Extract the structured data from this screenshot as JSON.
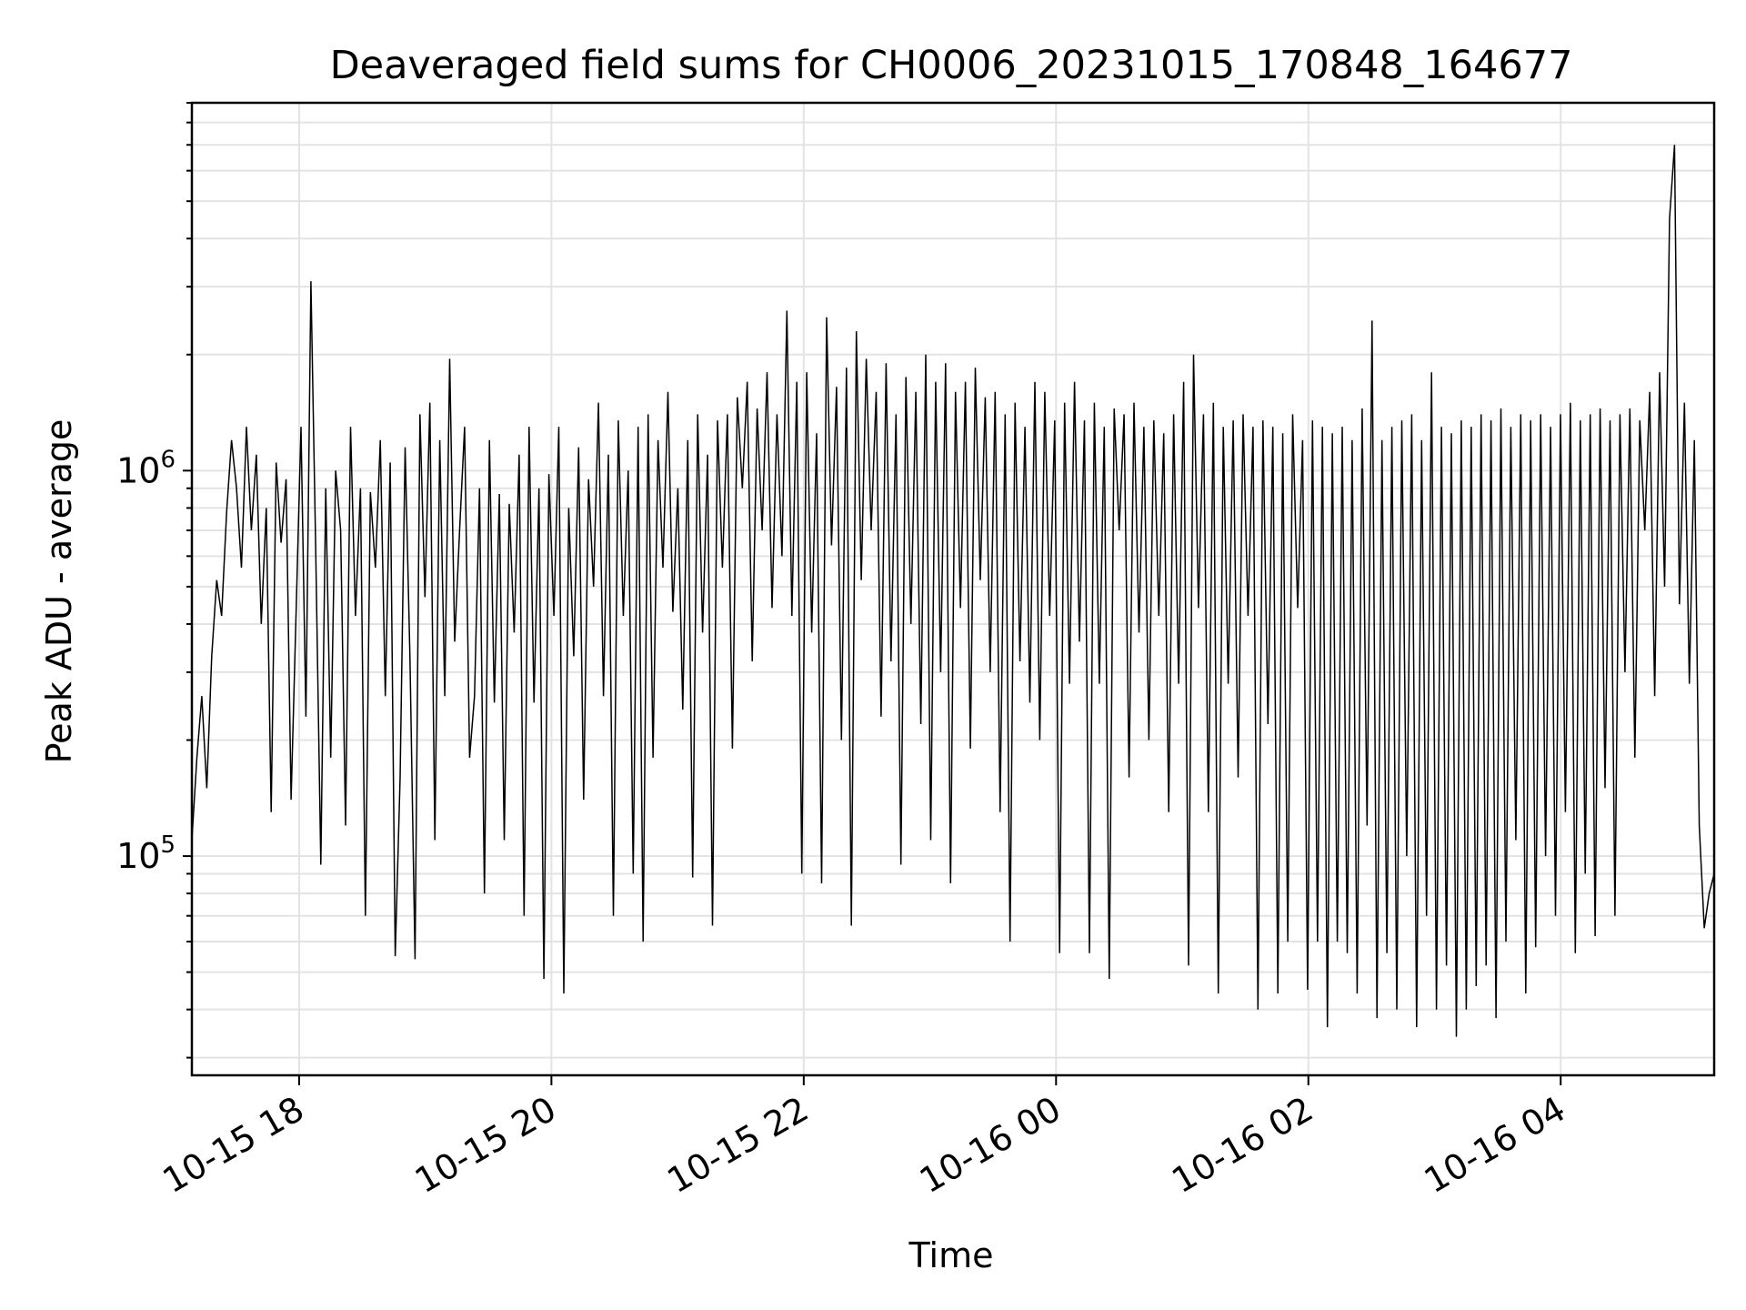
{
  "chart_data": {
    "type": "line",
    "title": "Deaveraged field sums for CH0006_20231015_170848_164677",
    "xlabel": "Time",
    "ylabel": "Peak ADU - average",
    "x_start": "2023-10-15 17:09",
    "x_end": "2023-10-16 05:13",
    "xlim": [
      "2023-10-15 17:09",
      "2023-10-16 05:13"
    ],
    "x_ticks": [
      {
        "value": "2023-10-15 18:00",
        "label": "10-15 18"
      },
      {
        "value": "2023-10-15 20:00",
        "label": "10-15 20"
      },
      {
        "value": "2023-10-15 22:00",
        "label": "10-15 22"
      },
      {
        "value": "2023-10-16 00:00",
        "label": "10-16 00"
      },
      {
        "value": "2023-10-16 02:00",
        "label": "10-16 02"
      },
      {
        "value": "2023-10-16 04:00",
        "label": "10-16 04"
      }
    ],
    "y_scale": "log",
    "ylim": [
      27000,
      9000000
    ],
    "y_ticks": [
      {
        "value": 100000,
        "base": "10",
        "exp": "5"
      },
      {
        "value": 1000000,
        "base": "10",
        "exp": "6"
      }
    ],
    "grid": true,
    "line_color": "#000000",
    "series": [
      {
        "values": [
          110000,
          180000,
          260000,
          150000,
          330000,
          520000,
          420000,
          780000,
          1200000,
          900000,
          560000,
          1300000,
          700000,
          1100000,
          400000,
          800000,
          130000,
          1050000,
          650000,
          950000,
          140000,
          420000,
          1300000,
          230000,
          3100000,
          600000,
          95000,
          900000,
          180000,
          1000000,
          700000,
          120000,
          1300000,
          420000,
          900000,
          70000,
          880000,
          560000,
          1200000,
          260000,
          1050000,
          55000,
          160000,
          1150000,
          320000,
          54000,
          1400000,
          470000,
          1500000,
          110000,
          1200000,
          260000,
          1950000,
          360000,
          700000,
          1300000,
          180000,
          260000,
          900000,
          80000,
          1200000,
          250000,
          870000,
          110000,
          820000,
          380000,
          1100000,
          70000,
          1300000,
          250000,
          900000,
          48000,
          980000,
          420000,
          1300000,
          44000,
          800000,
          330000,
          1150000,
          140000,
          950000,
          500000,
          1500000,
          260000,
          1100000,
          70000,
          1350000,
          420000,
          1000000,
          90000,
          1300000,
          60000,
          1400000,
          180000,
          1200000,
          560000,
          1600000,
          430000,
          900000,
          240000,
          1200000,
          88000,
          1400000,
          380000,
          1100000,
          66000,
          1350000,
          560000,
          1400000,
          190000,
          1550000,
          900000,
          1700000,
          320000,
          1450000,
          700000,
          1800000,
          440000,
          1400000,
          600000,
          2600000,
          420000,
          1700000,
          90000,
          1800000,
          380000,
          1250000,
          85000,
          2500000,
          640000,
          1650000,
          200000,
          1850000,
          66000,
          2300000,
          520000,
          1950000,
          700000,
          1600000,
          230000,
          1900000,
          320000,
          1400000,
          95000,
          1750000,
          400000,
          1600000,
          220000,
          2000000,
          110000,
          1700000,
          300000,
          1900000,
          85000,
          1600000,
          440000,
          1700000,
          190000,
          1850000,
          520000,
          1550000,
          300000,
          1600000,
          130000,
          1400000,
          60000,
          1500000,
          320000,
          1300000,
          250000,
          1700000,
          200000,
          1600000,
          420000,
          1350000,
          56000,
          1500000,
          280000,
          1700000,
          360000,
          1350000,
          56000,
          1500000,
          280000,
          1300000,
          48000,
          1450000,
          700000,
          1400000,
          160000,
          1500000,
          380000,
          1300000,
          200000,
          1350000,
          420000,
          1250000,
          130000,
          1400000,
          280000,
          1700000,
          52000,
          2000000,
          440000,
          1400000,
          130000,
          1500000,
          44000,
          1300000,
          280000,
          1350000,
          160000,
          1400000,
          420000,
          1300000,
          40000,
          1350000,
          220000,
          1300000,
          44000,
          1250000,
          60000,
          1400000,
          440000,
          1200000,
          45000,
          1350000,
          60000,
          1300000,
          36000,
          1250000,
          60000,
          1300000,
          56000,
          1200000,
          44000,
          1450000,
          120000,
          2450000,
          38000,
          1200000,
          56000,
          1300000,
          40000,
          1350000,
          100000,
          1400000,
          36000,
          1200000,
          70000,
          1800000,
          40000,
          1300000,
          52000,
          1250000,
          34000,
          1350000,
          40000,
          1300000,
          46000,
          1400000,
          52000,
          1350000,
          38000,
          1450000,
          60000,
          1300000,
          110000,
          1400000,
          44000,
          1350000,
          58000,
          1400000,
          100000,
          1300000,
          70000,
          1400000,
          130000,
          1500000,
          56000,
          1350000,
          90000,
          1400000,
          62000,
          1450000,
          150000,
          1350000,
          70000,
          1400000,
          300000,
          1450000,
          180000,
          1350000,
          700000,
          1600000,
          260000,
          1800000,
          500000,
          4500000,
          7000000,
          450000,
          1500000,
          280000,
          1200000,
          120000,
          65000,
          80000,
          90000
        ]
      }
    ]
  }
}
